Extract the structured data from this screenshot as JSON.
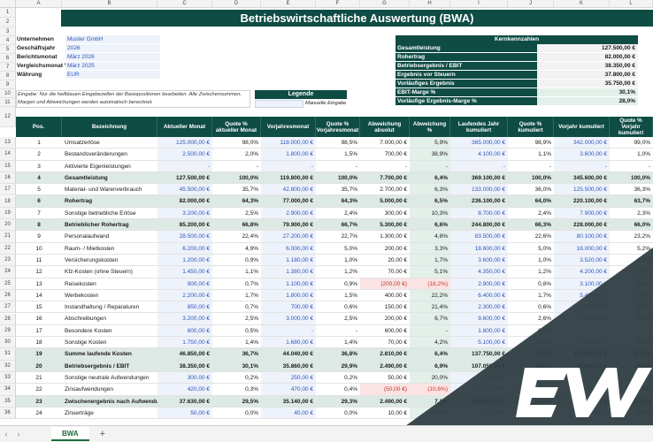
{
  "columns": [
    "A",
    "B",
    "C",
    "D",
    "E",
    "F",
    "G",
    "H",
    "I",
    "J",
    "K",
    "L"
  ],
  "rows": [
    "1",
    "2",
    "3",
    "4",
    "5",
    "6",
    "7",
    "8",
    "9",
    "10",
    "11",
    "12",
    "13",
    "14",
    "15",
    "16",
    "17",
    "18",
    "19",
    "20",
    "21",
    "22",
    "23",
    "24",
    "25",
    "26",
    "27",
    "28",
    "29",
    "30",
    "31",
    "32",
    "33",
    "34",
    "35",
    "36"
  ],
  "title": "Betriebswirtschaftliche Auswertung (BWA)",
  "info": [
    {
      "k": "Unternehmen",
      "v": "Muster GmbH"
    },
    {
      "k": "Geschäftsjahr",
      "v": "2026"
    },
    {
      "k": "Berichtsmonat",
      "v": "März 2026"
    },
    {
      "k": "Vergleichsmonat Vo",
      "v": "März 2025"
    },
    {
      "k": "Währung",
      "v": "EUR"
    }
  ],
  "kpi": {
    "title": "Kernkennzahlen",
    "rows": [
      {
        "k": "Gesamtleistung",
        "v": "127.500,00 €"
      },
      {
        "k": "Rohertrag",
        "v": "82.000,00 €"
      },
      {
        "k": "Betriebsergebnis / EBIT",
        "v": "38.350,00 €"
      },
      {
        "k": "Ergebnis vor Steuern",
        "v": "37.800,00 €"
      },
      {
        "k": "Vorläufiges Ergebnis",
        "v": "35.750,00 €"
      },
      {
        "k": "EBIT-Marge %",
        "v": "30,1%"
      },
      {
        "k": "Vorläufige Ergebnis-Marge %",
        "v": "28,0%"
      }
    ]
  },
  "note": "Eingabe: Nur die hellblauen Eingabezellen der Basispositionen bearbeiten. Alle Zwischensummen, Margen und Abweichungen werden automatisch berechnet.",
  "legend": {
    "title": "Legende",
    "item": "Manuelle Eingabe"
  },
  "headers": {
    "pos": "Pos.",
    "name": "Bezeichnung",
    "akt": "Aktueller Monat",
    "q1": "Quote % aktueller Monat",
    "vor": "Vorjahresmonat",
    "q2": "Quote % Vorjahresmonat",
    "abw": "Abweichung absolut",
    "abp": "Abweichung %",
    "lj": "Laufendes Jahr kumuliert",
    "q3": "Quote % kumuliert",
    "vk": "Vorjahr kumuliert",
    "q4": "Quote % Vorjahr kumuliert"
  },
  "table": [
    {
      "row": "13",
      "type": "input",
      "pos": "1",
      "name": "Umsatzerlöse",
      "akt": "125.000,00 €",
      "q1": "98,0%",
      "vor": "118.000,00 €",
      "q2": "98,5%",
      "abw": "7.000,00 €",
      "abp": "5,9%",
      "lj": "365.000,00 €",
      "q3": "98,9%",
      "vk": "342.000,00 €",
      "q4": "99,0%"
    },
    {
      "row": "14",
      "type": "input",
      "pos": "2",
      "name": "Bestandsveränderungen",
      "akt": "2.500,00 €",
      "q1": "2,0%",
      "vor": "1.800,00 €",
      "q2": "1,5%",
      "abw": "700,00 €",
      "abp": "38,9%",
      "lj": "4.100,00 €",
      "q3": "1,1%",
      "vk": "3.600,00 €",
      "q4": "1,0%"
    },
    {
      "row": "15",
      "type": "input",
      "pos": "3",
      "name": "Aktivierte Eigenleistungen",
      "akt": "-",
      "q1": "-",
      "vor": "-",
      "q2": "-",
      "abw": "-",
      "abp": "-",
      "lj": "-",
      "q3": "-",
      "vk": "-",
      "q4": "-"
    },
    {
      "row": "16",
      "type": "sub",
      "pos": "4",
      "name": "Gesamtleistung",
      "akt": "127.500,00 €",
      "q1": "100,0%",
      "vor": "119.800,00 €",
      "q2": "100,0%",
      "abw": "7.700,00 €",
      "abp": "6,4%",
      "lj": "369.100,00 €",
      "q3": "100,0%",
      "vk": "345.600,00 €",
      "q4": "100,0%"
    },
    {
      "row": "17",
      "type": "input",
      "pos": "5",
      "name": "Material- und Warenverbrauch",
      "akt": "45.500,00 €",
      "q1": "35,7%",
      "vor": "42.800,00 €",
      "q2": "35,7%",
      "abw": "2.700,00 €",
      "abp": "6,3%",
      "lj": "133.000,00 €",
      "q3": "36,0%",
      "vk": "125.500,00 €",
      "q4": "36,3%"
    },
    {
      "row": "18",
      "type": "sub",
      "pos": "6",
      "name": "Rohertrag",
      "akt": "82.000,00 €",
      "q1": "64,3%",
      "vor": "77.000,00 €",
      "q2": "64,3%",
      "abw": "5.000,00 €",
      "abp": "6,5%",
      "lj": "236.100,00 €",
      "q3": "64,0%",
      "vk": "220.100,00 €",
      "q4": "63,7%"
    },
    {
      "row": "19",
      "type": "input",
      "pos": "7",
      "name": "Sonstige betriebliche Erlöse",
      "akt": "3.200,00 €",
      "q1": "2,5%",
      "vor": "2.900,00 €",
      "q2": "2,4%",
      "abw": "300,00 €",
      "abp": "10,3%",
      "lj": "8.700,00 €",
      "q3": "2,4%",
      "vk": "7.900,00 €",
      "q4": "2,3%"
    },
    {
      "row": "20",
      "type": "sub",
      "pos": "8",
      "name": "Betrieblicher Rohertrag",
      "akt": "85.200,00 €",
      "q1": "66,8%",
      "vor": "79.900,00 €",
      "q2": "66,7%",
      "abw": "5.300,00 €",
      "abp": "6,6%",
      "lj": "244.800,00 €",
      "q3": "66,3%",
      "vk": "228.000,00 €",
      "q4": "66,0%"
    },
    {
      "row": "21",
      "type": "input",
      "pos": "9",
      "name": "Personalaufwand",
      "akt": "28.500,00 €",
      "q1": "22,4%",
      "vor": "27.200,00 €",
      "q2": "22,7%",
      "abw": "1.300,00 €",
      "abp": "4,8%",
      "lj": "83.500,00 €",
      "q3": "22,6%",
      "vk": "80.100,00 €",
      "q4": "23,2%"
    },
    {
      "row": "22",
      "type": "input",
      "pos": "10",
      "name": "Raum- / Mietkosten",
      "akt": "6.200,00 €",
      "q1": "4,9%",
      "vor": "6.000,00 €",
      "q2": "5,0%",
      "abw": "200,00 €",
      "abp": "3,3%",
      "lj": "18.600,00 €",
      "q3": "5,0%",
      "vk": "18.000,00 €",
      "q4": "5,2%"
    },
    {
      "row": "23",
      "type": "input",
      "pos": "11",
      "name": "Versicherungskosten",
      "akt": "1.200,00 €",
      "q1": "0,9%",
      "vor": "1.180,00 €",
      "q2": "1,0%",
      "abw": "20,00 €",
      "abp": "1,7%",
      "lj": "3.600,00 €",
      "q3": "1,0%",
      "vk": "3.520,00 €",
      "q4": "1,0%"
    },
    {
      "row": "24",
      "type": "input",
      "pos": "12",
      "name": "Kfz-Kosten (ohne Steuern)",
      "akt": "1.450,00 €",
      "q1": "1,1%",
      "vor": "1.380,00 €",
      "q2": "1,2%",
      "abw": "70,00 €",
      "abp": "5,1%",
      "lj": "4.350,00 €",
      "q3": "1,2%",
      "vk": "4.200,00 €",
      "q4": "1,2%"
    },
    {
      "row": "25",
      "type": "input",
      "pos": "13",
      "name": "Reisekosten",
      "akt": "900,00 €",
      "q1": "0,7%",
      "vor": "1.100,00 €",
      "q2": "0,9%",
      "abw": "(200,00 €)",
      "abp": "(18,2%)",
      "neg": true,
      "lj": "2.900,00 €",
      "q3": "0,8%",
      "vk": "3.100,00 €",
      "q4": "0,9%"
    },
    {
      "row": "26",
      "type": "input",
      "pos": "14",
      "name": "Werbekosten",
      "akt": "2.200,00 €",
      "q1": "1,7%",
      "vor": "1.800,00 €",
      "q2": "1,5%",
      "abw": "400,00 €",
      "abp": "22,2%",
      "lj": "6.400,00 €",
      "q3": "1,7%",
      "vk": "5.400,00 €",
      "q4": "1,6%"
    },
    {
      "row": "27",
      "type": "input",
      "pos": "15",
      "name": "Instandhaltung / Reparaturen",
      "akt": "850,00 €",
      "q1": "0,7%",
      "vor": "700,00 €",
      "q2": "0,6%",
      "abw": "150,00 €",
      "abp": "21,4%",
      "lj": "2.300,00 €",
      "q3": "0,6%",
      "vk": "2.100,00 €",
      "q4": "0,6%"
    },
    {
      "row": "28",
      "type": "input",
      "pos": "16",
      "name": "Abschreibungen",
      "akt": "3.200,00 €",
      "q1": "2,5%",
      "vor": "3.000,00 €",
      "q2": "2,5%",
      "abw": "200,00 €",
      "abp": "6,7%",
      "lj": "9.600,00 €",
      "q3": "2,6%",
      "vk": "9.000,00 €",
      "q4": "2,6%"
    },
    {
      "row": "29",
      "type": "input",
      "pos": "17",
      "name": "Besondere Kosten",
      "akt": "600,00 €",
      "q1": "0,5%",
      "vor": "-",
      "q2": "-",
      "abw": "600,00 €",
      "abp": "-",
      "lj": "1.800,00 €",
      "q3": "0,5%",
      "vk": "-",
      "q4": "-"
    },
    {
      "row": "30",
      "type": "input",
      "pos": "18",
      "name": "Sonstige Kosten",
      "akt": "1.750,00 €",
      "q1": "1,4%",
      "vor": "1.680,00 €",
      "q2": "1,4%",
      "abw": "70,00 €",
      "abp": "4,2%",
      "lj": "5.100,00 €",
      "q3": "1,4%",
      "vk": "4.900,00 €",
      "q4": "1,4%"
    },
    {
      "row": "31",
      "type": "sub",
      "pos": "19",
      "name": "Summe laufende Kosten",
      "akt": "46.850,00 €",
      "q1": "36,7%",
      "vor": "44.040,00 €",
      "q2": "36,8%",
      "abw": "2.810,00 €",
      "abp": "6,4%",
      "lj": "137.750,00 €",
      "q3": "37,3%",
      "vk": "129.320,00 €",
      "q4": "37,4%"
    },
    {
      "row": "32",
      "type": "sub",
      "pos": "20",
      "name": "Betriebsergebnis / EBIT",
      "akt": "38.350,00 €",
      "q1": "30,1%",
      "vor": "35.860,00 €",
      "q2": "29,9%",
      "abw": "2.490,00 €",
      "abp": "6,9%",
      "lj": "107.050,00 €",
      "q3": "29,0%",
      "vk": "98.680,00 €",
      "q4": "28,6%"
    },
    {
      "row": "33",
      "type": "input",
      "pos": "21",
      "name": "Sonstige neutrale Aufwendungen",
      "akt": "300,00 €",
      "q1": "0,2%",
      "vor": "250,00 €",
      "q2": "0,2%",
      "abw": "50,00 €",
      "abp": "20,0%",
      "lj": "900,00 €",
      "q3": "0,2%",
      "vk": "750,00 €",
      "q4": "0,2%"
    },
    {
      "row": "34",
      "type": "input",
      "pos": "22",
      "name": "Zinsaufwendungen",
      "akt": "420,00 €",
      "q1": "0,3%",
      "vor": "470,00 €",
      "q2": "0,4%",
      "abw": "(50,00 €)",
      "abp": "(10,6%)",
      "neg": true,
      "lj": "1.260,00 €",
      "q3": "0,3%",
      "vk": "1.410,00 €",
      "q4": "0,4%"
    },
    {
      "row": "35",
      "type": "sub",
      "pos": "23",
      "name": "Zwischenergebnis nach Aufwendung",
      "akt": "37.630,00 €",
      "q1": "29,5%",
      "vor": "35.140,00 €",
      "q2": "29,3%",
      "abw": "2.490,00 €",
      "abp": "7,1%",
      "lj": "104.890,00 €",
      "q3": "28,4%",
      "vk": "96.520,00 €",
      "q4": "27,9%"
    },
    {
      "row": "36",
      "type": "input",
      "pos": "24",
      "name": "Zinserträge",
      "akt": "50,00 €",
      "q1": "0,0%",
      "vor": "40,00 €",
      "q2": "0,0%",
      "abw": "10,00 €",
      "abp": "25,0%",
      "lj": "150,00 €",
      "q3": "0,0%",
      "vk": "120,00 €",
      "q4": "0,0%"
    }
  ],
  "sheet_tab": "BWA",
  "add_sheet": "+",
  "nav_prev": "‹",
  "nav_next": "›",
  "colors": {
    "accent": "#0e4c44",
    "input": "#eef2fa",
    "subtotal": "#dde9e5",
    "overlay": "#2f3e43"
  },
  "overlay_logo": "EW"
}
